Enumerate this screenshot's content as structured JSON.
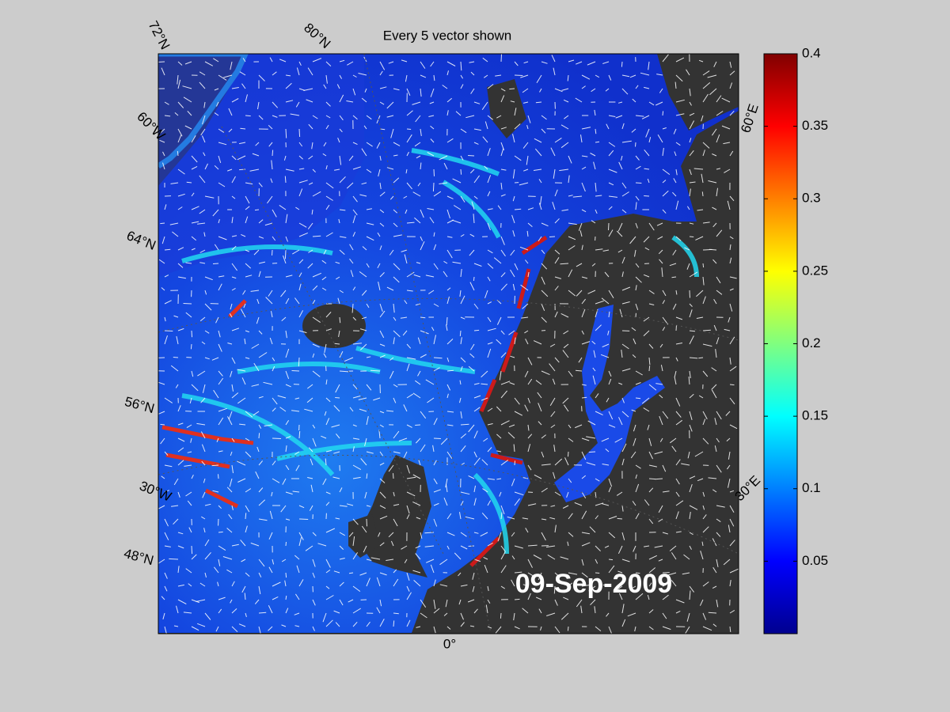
{
  "title": "Every 5 vector shown",
  "date_label": "09-Sep-2009",
  "graticule_labels": [
    "72°N",
    "80°N",
    "60°W",
    "64°N",
    "56°N",
    "30°W",
    "48°N",
    "0°",
    "30°E",
    "60°E"
  ],
  "colorbar": {
    "colormap": "jet",
    "clim": [
      0,
      0.4
    ],
    "ticks": [
      0.05,
      0.1,
      0.15,
      0.2,
      0.25,
      0.3,
      0.35,
      0.4
    ]
  }
}
